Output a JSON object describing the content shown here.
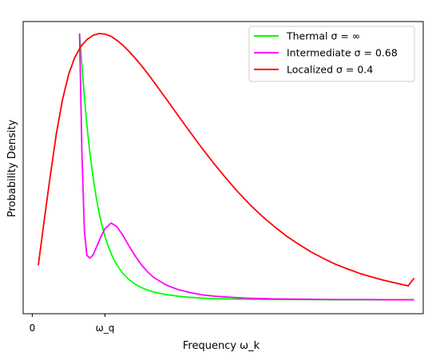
{
  "chart_data": {
    "type": "line",
    "title": "",
    "xlabel": "Frequency ω_k",
    "ylabel": "Probability Density",
    "xlim": [
      -0.15,
      6.45
    ],
    "ylim": [
      -0.05,
      1.0
    ],
    "x_ticks": [
      {
        "value": 0,
        "label": "0"
      },
      {
        "value": 1.2,
        "label": "ω_q"
      }
    ],
    "y_ticks": [],
    "grid": false,
    "legend_position": "top-right",
    "series": [
      {
        "name": "Thermal σ = ∞",
        "color": "#00ff00",
        "x": [
          0.78,
          0.82,
          0.86,
          0.9,
          0.95,
          1.0,
          1.05,
          1.1,
          1.15,
          1.2,
          1.25,
          1.3,
          1.35,
          1.4,
          1.5,
          1.6,
          1.7,
          1.8,
          1.9,
          2.0,
          2.2,
          2.4,
          2.6,
          2.8,
          3.0,
          3.5,
          4.0,
          4.5,
          5.0,
          5.5,
          6.0,
          6.3
        ],
        "y": [
          0.957,
          0.84,
          0.73,
          0.63,
          0.53,
          0.445,
          0.375,
          0.315,
          0.268,
          0.228,
          0.195,
          0.167,
          0.143,
          0.124,
          0.093,
          0.072,
          0.056,
          0.044,
          0.035,
          0.028,
          0.019,
          0.013,
          0.009,
          0.006,
          0.004,
          0.002,
          0.001,
          0.001,
          0.0,
          0.0,
          0.0,
          0.0
        ]
      },
      {
        "name": "Intermediate σ = 0.68",
        "color": "#ff00ff",
        "x": [
          0.78,
          0.82,
          0.86,
          0.9,
          0.95,
          1.0,
          1.05,
          1.1,
          1.15,
          1.2,
          1.3,
          1.4,
          1.5,
          1.6,
          1.7,
          1.8,
          1.9,
          2.0,
          2.2,
          2.4,
          2.6,
          2.8,
          3.0,
          3.5,
          4.0,
          4.5,
          5.0,
          5.5,
          6.0,
          6.3
        ],
        "y": [
          0.957,
          0.52,
          0.25,
          0.16,
          0.15,
          0.16,
          0.185,
          0.21,
          0.235,
          0.255,
          0.276,
          0.262,
          0.23,
          0.192,
          0.157,
          0.126,
          0.101,
          0.081,
          0.054,
          0.037,
          0.026,
          0.018,
          0.013,
          0.006,
          0.003,
          0.002,
          0.001,
          0.001,
          0.0,
          0.0
        ]
      },
      {
        "name": "Localized σ = 0.4",
        "color": "#ff0000",
        "x": [
          0.1,
          0.2,
          0.3,
          0.4,
          0.5,
          0.6,
          0.7,
          0.8,
          0.9,
          1.0,
          1.1,
          1.2,
          1.3,
          1.4,
          1.5,
          1.6,
          1.7,
          1.8,
          1.9,
          2.0,
          2.2,
          2.4,
          2.6,
          2.8,
          3.0,
          3.2,
          3.4,
          3.6,
          3.8,
          4.0,
          4.2,
          4.4,
          4.6,
          4.8,
          5.0,
          5.2,
          5.4,
          5.6,
          5.8,
          6.0,
          6.2,
          6.3
        ],
        "y": [
          0.124,
          0.29,
          0.45,
          0.6,
          0.72,
          0.81,
          0.87,
          0.91,
          0.935,
          0.95,
          0.957,
          0.955,
          0.947,
          0.932,
          0.914,
          0.892,
          0.868,
          0.842,
          0.814,
          0.785,
          0.725,
          0.664,
          0.604,
          0.545,
          0.489,
          0.436,
          0.386,
          0.34,
          0.299,
          0.262,
          0.228,
          0.199,
          0.172,
          0.149,
          0.128,
          0.111,
          0.095,
          0.082,
          0.07,
          0.06,
          0.05,
          0.078
        ]
      }
    ]
  }
}
